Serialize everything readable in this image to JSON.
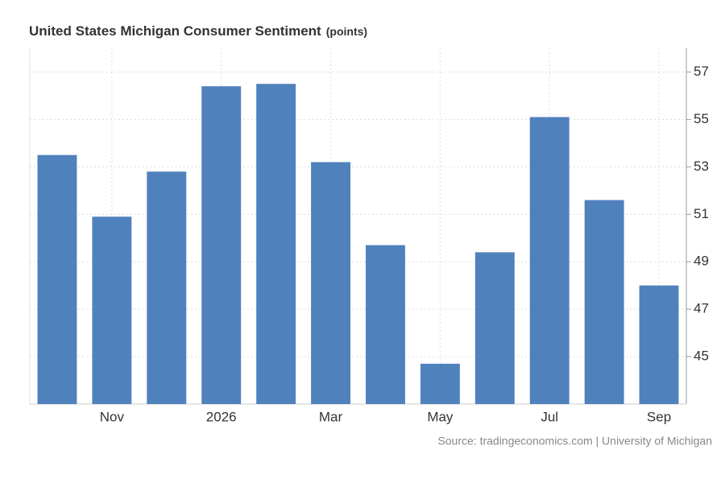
{
  "chart_data": {
    "type": "bar",
    "title": "United States Michigan Consumer Sentiment",
    "unit": "(points)",
    "categories": [
      null,
      "Nov",
      null,
      "2026",
      null,
      "Mar",
      null,
      "May",
      null,
      "Jul",
      null,
      "Sep"
    ],
    "values": [
      53.5,
      50.9,
      52.8,
      56.4,
      56.5,
      53.2,
      49.7,
      44.7,
      49.4,
      55.1,
      51.6,
      48.0
    ],
    "color": "#4f81bd",
    "ylim": [
      43,
      58
    ],
    "yticks": [
      45,
      47,
      49,
      51,
      53,
      55,
      57
    ],
    "grid": true,
    "source": "Source: tradingeconomics.com | University of Michigan"
  }
}
